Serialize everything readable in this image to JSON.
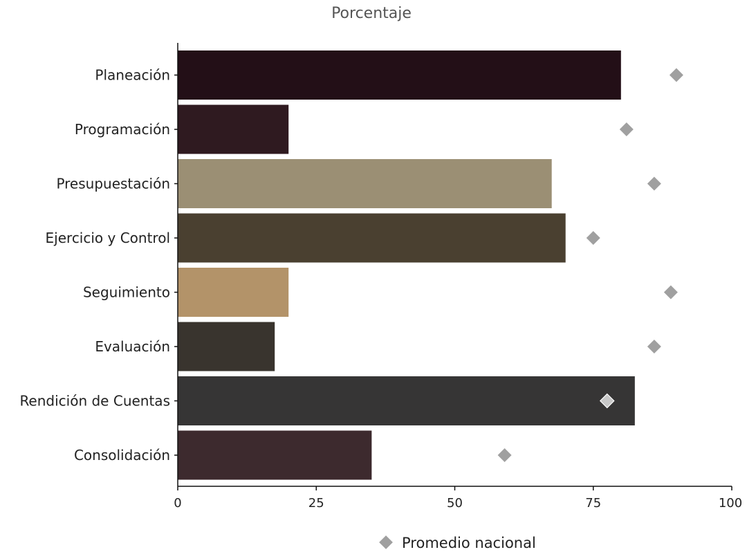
{
  "chart_data": {
    "type": "bar",
    "orientation": "horizontal",
    "title": "Porcentaje",
    "categories": [
      "Planeación",
      "Programación",
      "Presupuestación",
      "Ejercicio y Control",
      "Seguimiento",
      "Evaluación",
      "Rendición de Cuentas",
      "Consolidación"
    ],
    "values": [
      80,
      20,
      67.5,
      70,
      20,
      17.5,
      82.5,
      35
    ],
    "bar_colors": [
      "#230f17",
      "#2f1a20",
      "#9b8f74",
      "#4a4030",
      "#b39369",
      "#39342e",
      "#363535",
      "#3d2a2e"
    ],
    "series": [
      {
        "name": "Promedio nacional",
        "type": "scatter",
        "marker": "diamond",
        "color": "#a0a0a0",
        "values": [
          90,
          81,
          86,
          75,
          89,
          86,
          77.5,
          59
        ]
      }
    ],
    "xlim": [
      0,
      100
    ],
    "xticks": [
      0,
      25,
      50,
      75,
      100
    ],
    "grid": false,
    "legend_position": "bottom-center"
  }
}
